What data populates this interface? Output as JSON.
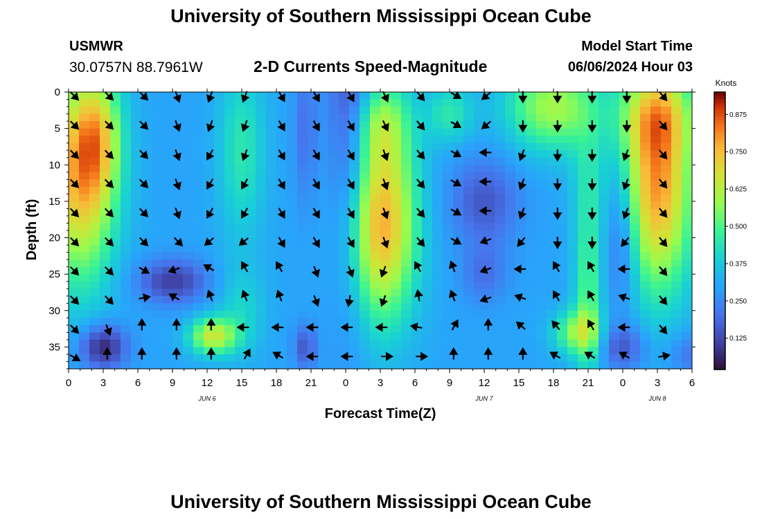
{
  "page": {
    "title_top": "University of Southern Mississippi Ocean Cube",
    "title_bottom": "University of Southern Mississippi Ocean Cube",
    "station": "USMWR",
    "coords": "30.0757N  88.7961W",
    "subtitle": "2-D Currents Speed-Magnitude",
    "start_label": "Model Start Time",
    "start_value": "06/06/2024 Hour 03"
  },
  "chart_data": {
    "type": "heatmap",
    "xlabel": "Forecast Time(Z)",
    "ylabel": "Depth (ft)",
    "x_range": [
      0,
      54
    ],
    "y_range": [
      0,
      38
    ],
    "x_ticks": [
      0,
      3,
      6,
      9,
      12,
      15,
      18,
      21,
      24,
      27,
      30,
      33,
      36,
      39,
      42,
      45,
      48,
      51,
      54
    ],
    "x_tick_labels": [
      "0",
      "3",
      "6",
      "9",
      "12",
      "15",
      "18",
      "21",
      "0",
      "3",
      "6",
      "9",
      "12",
      "15",
      "18",
      "21",
      "0",
      "3",
      "6"
    ],
    "y_ticks": [
      0,
      5,
      10,
      15,
      20,
      25,
      30,
      35
    ],
    "y_tick_labels": [
      "0",
      "5",
      "10",
      "15",
      "20",
      "25",
      "30",
      "35"
    ],
    "date_labels": [
      {
        "x": 12,
        "text": "JUN 6"
      },
      {
        "x": 36,
        "text": "JUN 7"
      },
      {
        "x": 51,
        "text": "JUN 8"
      }
    ],
    "colorbar": {
      "title": "Knots",
      "range": [
        0.02,
        0.95
      ],
      "ticks": [
        0.125,
        0.25,
        0.375,
        0.5,
        0.625,
        0.75,
        0.875
      ],
      "tick_labels": [
        "0.125",
        "0.250",
        "0.375",
        "0.500",
        "0.625",
        "0.750",
        "0.875"
      ],
      "colormap": "turbo"
    },
    "grid": false,
    "vectors": {
      "times": [
        0,
        3,
        6,
        9,
        12,
        15,
        18,
        21,
        24,
        27,
        30,
        33,
        36,
        39,
        42,
        45,
        48,
        51
      ],
      "depths": [
        0,
        4,
        8,
        12,
        16,
        20,
        24,
        28,
        32,
        36
      ],
      "directions_deg": [
        [
          135,
          135,
          135,
          160,
          200,
          200,
          150,
          150,
          150,
          155,
          140,
          120,
          230,
          180,
          180,
          180,
          180,
          140
        ],
        [
          135,
          135,
          135,
          160,
          200,
          200,
          150,
          150,
          150,
          155,
          140,
          120,
          230,
          180,
          180,
          180,
          180,
          140
        ],
        [
          135,
          135,
          135,
          160,
          210,
          200,
          150,
          150,
          150,
          160,
          140,
          120,
          270,
          200,
          180,
          180,
          200,
          140
        ],
        [
          135,
          135,
          135,
          160,
          210,
          210,
          150,
          150,
          150,
          160,
          140,
          120,
          270,
          200,
          180,
          180,
          200,
          140
        ],
        [
          135,
          135,
          135,
          160,
          210,
          210,
          150,
          150,
          150,
          160,
          140,
          120,
          270,
          200,
          180,
          180,
          200,
          140
        ],
        [
          135,
          135,
          135,
          135,
          230,
          230,
          150,
          150,
          150,
          160,
          140,
          120,
          250,
          220,
          180,
          180,
          220,
          140
        ],
        [
          135,
          135,
          120,
          250,
          300,
          330,
          330,
          160,
          160,
          200,
          330,
          340,
          250,
          270,
          330,
          330,
          270,
          140
        ],
        [
          135,
          135,
          80,
          300,
          340,
          340,
          340,
          160,
          190,
          200,
          350,
          340,
          250,
          290,
          330,
          330,
          290,
          140
        ],
        [
          135,
          160,
          0,
          0,
          0,
          270,
          270,
          270,
          270,
          270,
          280,
          30,
          0,
          310,
          320,
          330,
          270,
          140
        ],
        [
          120,
          0,
          0,
          0,
          0,
          30,
          300,
          270,
          270,
          90,
          90,
          0,
          0,
          0,
          300,
          300,
          300,
          80
        ]
      ]
    }
  }
}
